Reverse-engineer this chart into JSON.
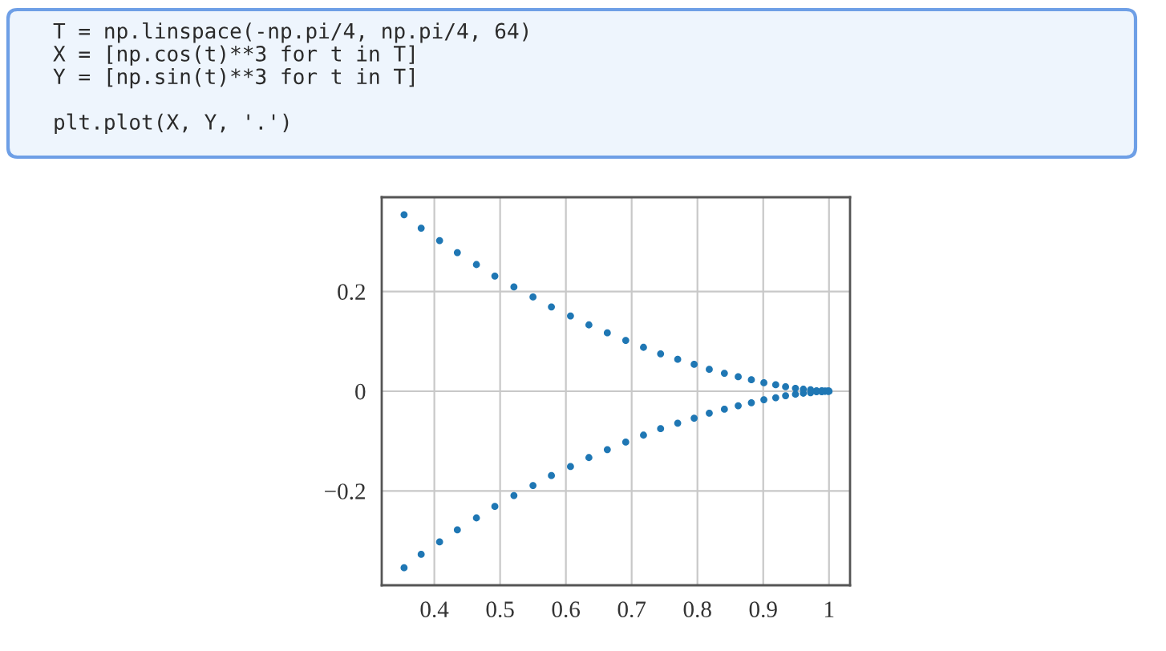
{
  "chart_data": {
    "type": "scatter",
    "annotations": [
      "T = np.linspace(-np.pi/4, np.pi/4, 64)\nX = [np.cos(t)**3 for t in T]\nY = [np.sin(t)**3 for t in T]\n\nplt.plot(X, Y, '.')"
    ],
    "x": [
      0.354,
      0.38,
      0.408,
      0.435,
      0.464,
      0.492,
      0.521,
      0.55,
      0.578,
      0.607,
      0.635,
      0.663,
      0.691,
      0.718,
      0.744,
      0.77,
      0.795,
      0.818,
      0.841,
      0.862,
      0.882,
      0.901,
      0.919,
      0.934,
      0.949,
      0.961,
      0.972,
      0.981,
      0.989,
      0.994,
      0.998,
      1.0,
      1.0,
      0.998,
      0.994,
      0.989,
      0.981,
      0.972,
      0.961,
      0.949,
      0.934,
      0.919,
      0.901,
      0.882,
      0.862,
      0.841,
      0.818,
      0.795,
      0.77,
      0.744,
      0.718,
      0.691,
      0.663,
      0.635,
      0.607,
      0.578,
      0.55,
      0.521,
      0.492,
      0.464,
      0.435,
      0.408,
      0.38,
      0.354
    ],
    "values": [
      -0.354,
      -0.327,
      -0.302,
      -0.278,
      -0.254,
      -0.231,
      -0.209,
      -0.189,
      -0.169,
      -0.151,
      -0.133,
      -0.117,
      -0.102,
      -0.088,
      -0.075,
      -0.064,
      -0.054,
      -0.044,
      -0.036,
      -0.029,
      -0.023,
      -0.017,
      -0.013,
      -0.009,
      -0.006,
      -0.004,
      -0.003,
      -0.001,
      -0.001,
      0.0,
      0.0,
      0.0,
      0.0,
      0.0,
      0.0,
      0.001,
      0.001,
      0.003,
      0.004,
      0.006,
      0.009,
      0.013,
      0.017,
      0.023,
      0.029,
      0.036,
      0.044,
      0.054,
      0.064,
      0.075,
      0.088,
      0.102,
      0.117,
      0.133,
      0.151,
      0.169,
      0.189,
      0.209,
      0.231,
      0.254,
      0.278,
      0.302,
      0.327,
      0.354
    ],
    "color": "#1f77b4",
    "marker": "circle",
    "xlim": [
      0.32,
      1.032
    ],
    "ylim": [
      -0.389,
      0.389
    ],
    "xticks": [
      0.4,
      0.5,
      0.6,
      0.7,
      0.8,
      0.9,
      1
    ],
    "yticks": [
      {
        "value": -0.2,
        "label": "−0.2"
      },
      0,
      0.2
    ],
    "grid": true
  }
}
